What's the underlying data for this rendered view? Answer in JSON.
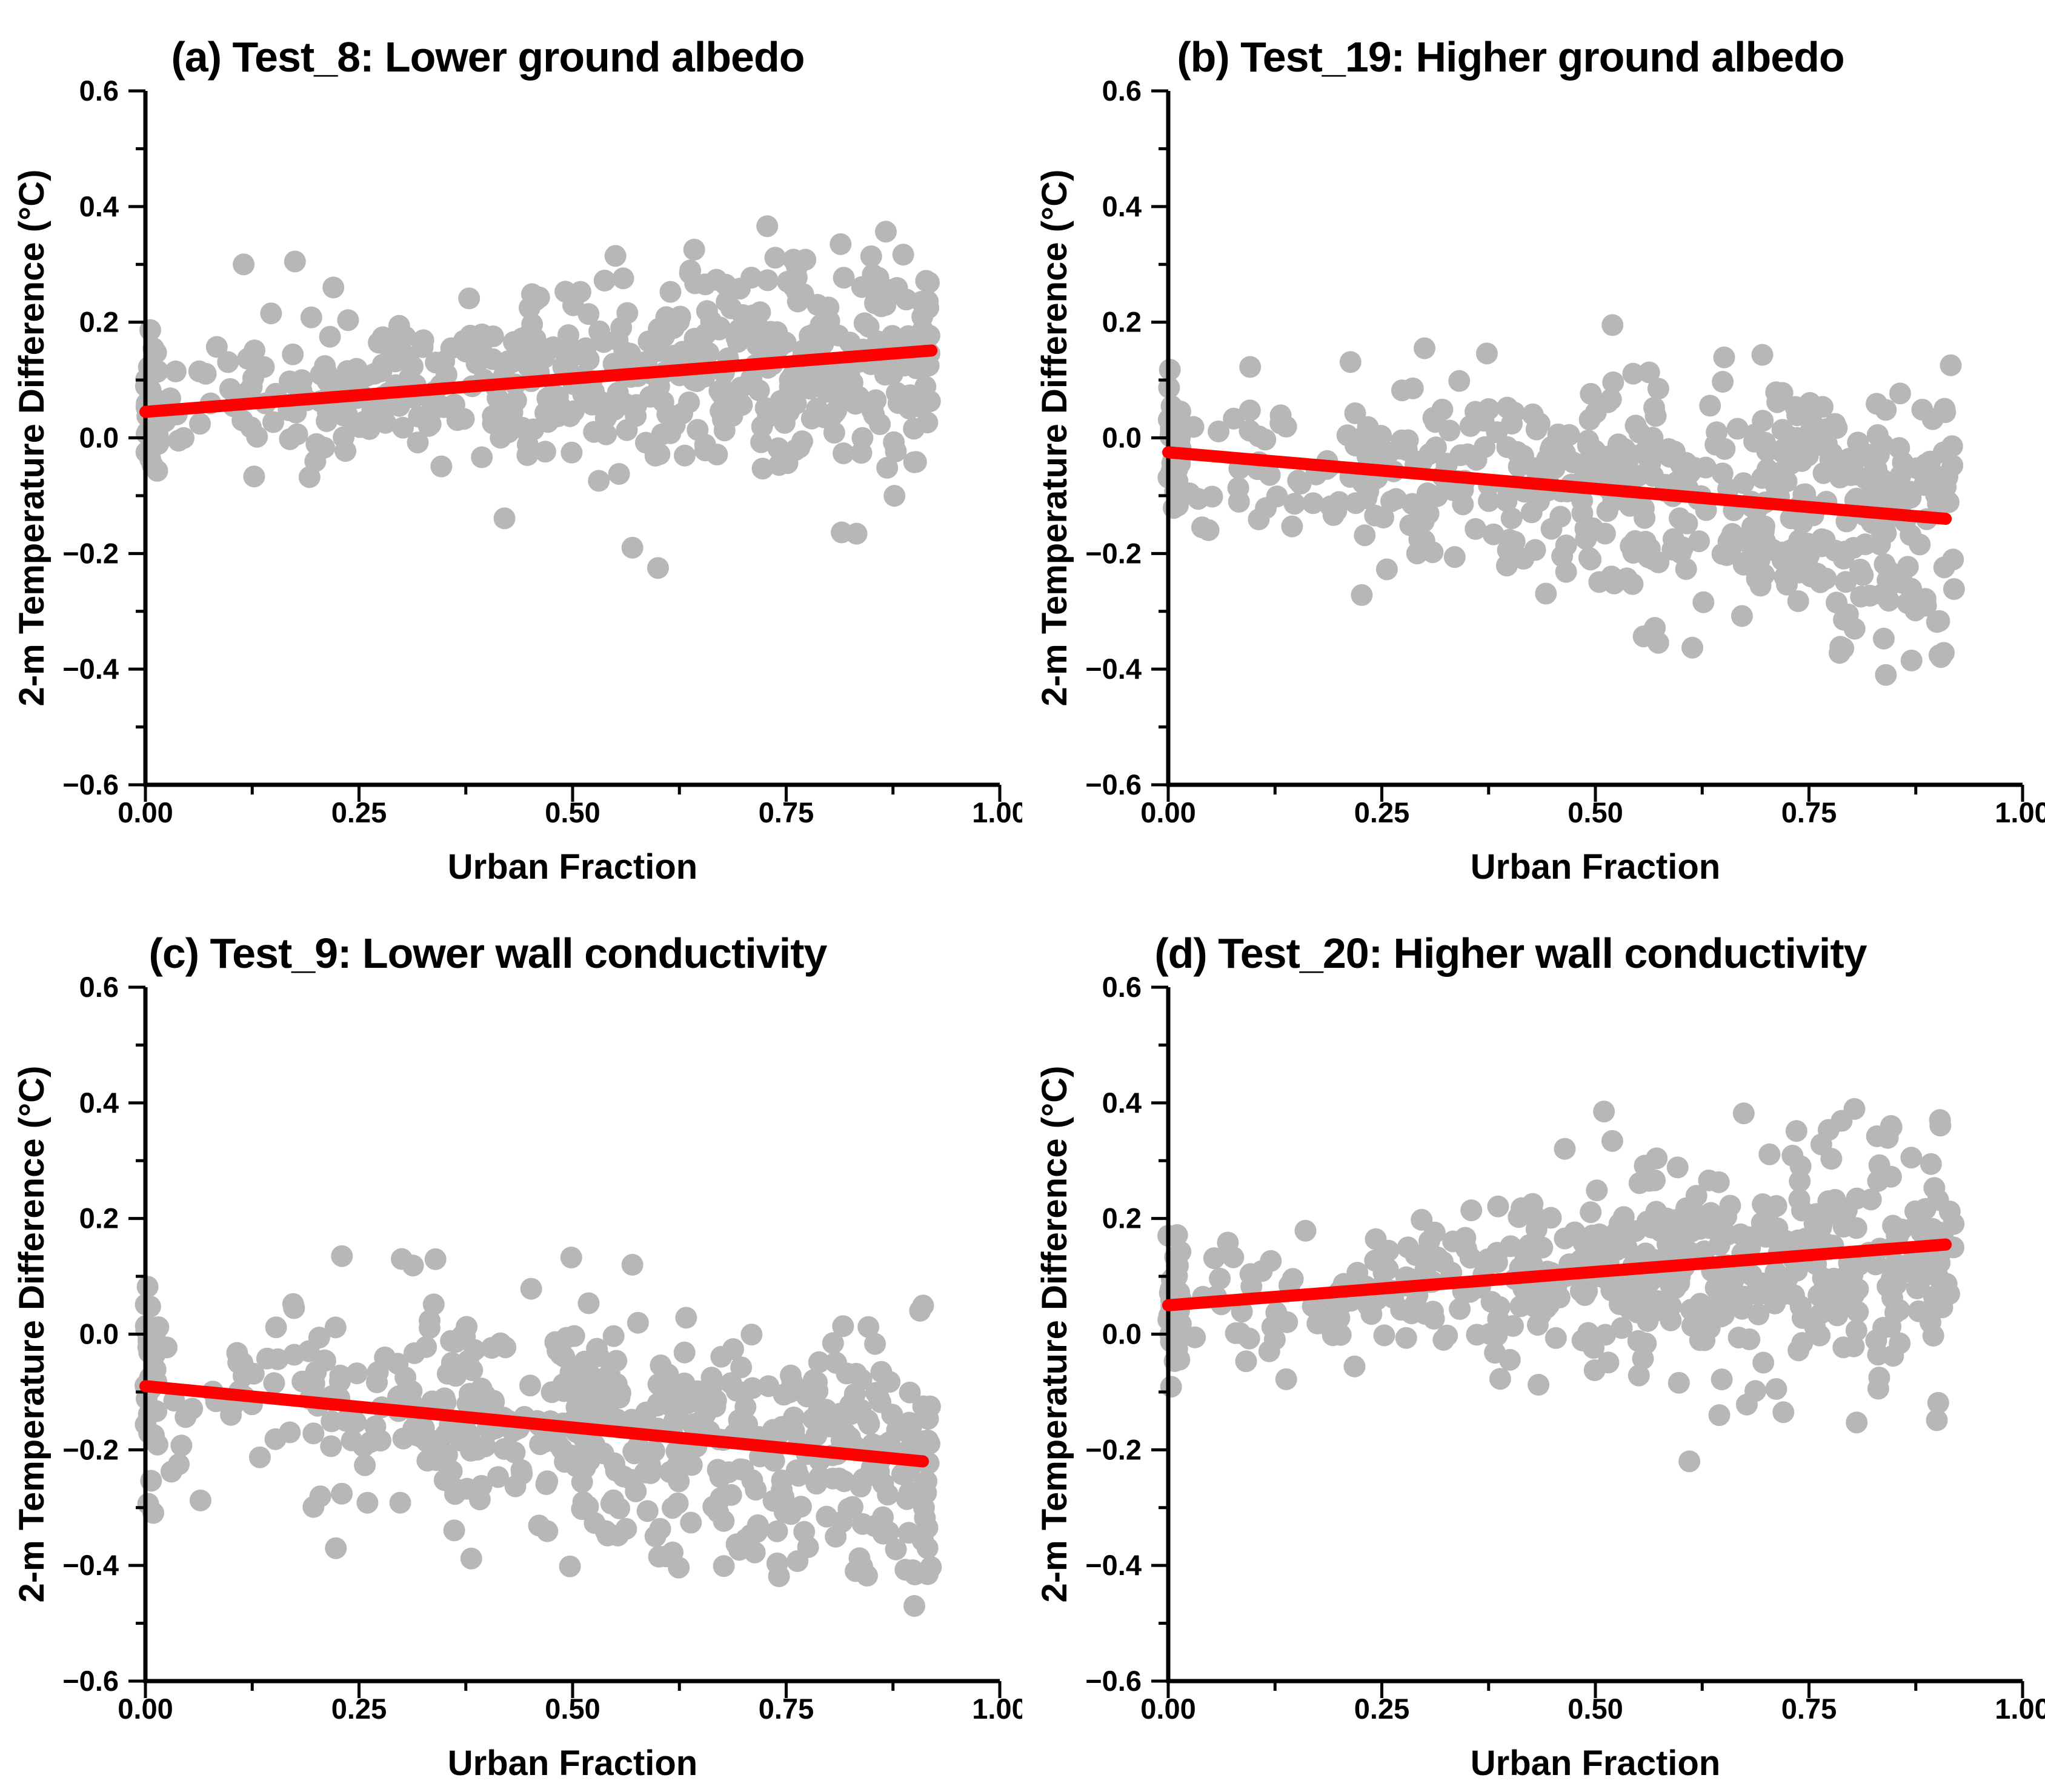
{
  "figure": {
    "x_axis_label": "Urban Fraction",
    "y_axis_label": "2-m Temperature Difference (°C)",
    "colors": {
      "point": "#b7b7b7",
      "trend": "#fe0000",
      "axis": "#000000",
      "background": "#ffffff",
      "text": "#000000"
    }
  },
  "chart_data": [
    {
      "type": "scatter",
      "panel": "a",
      "title": "(a) Test_8: Lower ground albedo",
      "xlabel": "Urban Fraction",
      "ylabel": "2-m Temperature Difference (°C)",
      "xlim": [
        0,
        1
      ],
      "ylim": [
        -0.6,
        0.6
      ],
      "x_ticks": [
        0,
        0.25,
        0.5,
        0.75,
        1
      ],
      "x_tick_labels": [
        "0.00",
        "0.25",
        "0.50",
        "0.75",
        "1.00"
      ],
      "y_ticks": [
        -0.6,
        -0.4,
        -0.2,
        0,
        0.2,
        0.4,
        0.6
      ],
      "y_tick_labels": [
        "−0.6",
        "−0.4",
        "−0.2",
        "0.0",
        "0.2",
        "0.4",
        "0.6"
      ],
      "x_minor_step": 0.125,
      "y_minor_step": 0.1,
      "grid": false,
      "legend": false,
      "trend": {
        "x0": 0,
        "y0": 0.045,
        "x1": 0.92,
        "y1": 0.151
      },
      "scatter": {
        "n": 540,
        "seed": 81,
        "x_max": 0.92,
        "x_exp": 0.62,
        "x0_cluster_frac": 0.07,
        "sd0": 0.055,
        "sd1": 0.115,
        "y_min": -0.24,
        "y_max": 0.375
      },
      "extra_points": [
        [
          0.6,
          -0.225
        ],
        [
          0.57,
          -0.19
        ],
        [
          0.115,
          0.3
        ],
        [
          0.175,
          0.305
        ],
        [
          0.22,
          0.26
        ]
      ]
    },
    {
      "type": "scatter",
      "panel": "b",
      "title": "(b) Test_19: Higher ground albedo",
      "xlabel": "Urban Fraction",
      "ylabel": "2-m Temperature Difference (°C)",
      "xlim": [
        0,
        1
      ],
      "ylim": [
        -0.6,
        0.6
      ],
      "x_ticks": [
        0,
        0.25,
        0.5,
        0.75,
        1
      ],
      "x_tick_labels": [
        "0.00",
        "0.25",
        "0.50",
        "0.75",
        "1.00"
      ],
      "y_ticks": [
        -0.6,
        -0.4,
        -0.2,
        0,
        0.2,
        0.4,
        0.6
      ],
      "y_tick_labels": [
        "−0.6",
        "−0.4",
        "−0.2",
        "0.0",
        "0.2",
        "0.4",
        "0.6"
      ],
      "x_minor_step": 0.125,
      "y_minor_step": 0.1,
      "grid": false,
      "legend": false,
      "trend": {
        "x0": 0,
        "y0": -0.025,
        "x1": 0.91,
        "y1": -0.14
      },
      "scatter": {
        "n": 540,
        "seed": 191,
        "x_max": 0.92,
        "x_exp": 0.62,
        "x0_cluster_frac": 0.07,
        "sd0": 0.07,
        "sd1": 0.125,
        "y_min": -0.38,
        "y_max": 0.205
      },
      "extra_points": [
        [
          0.84,
          -0.41
        ],
        [
          0.87,
          -0.385
        ],
        [
          0.52,
          0.195
        ],
        [
          0.3,
          0.155
        ]
      ]
    },
    {
      "type": "scatter",
      "panel": "c",
      "title": "(c) Test_9: Lower wall conductivity",
      "xlabel": "Urban Fraction",
      "ylabel": "2-m Temperature Difference (°C)",
      "xlim": [
        0,
        1
      ],
      "ylim": [
        -0.6,
        0.6
      ],
      "x_ticks": [
        0,
        0.25,
        0.5,
        0.75,
        1
      ],
      "x_tick_labels": [
        "0.00",
        "0.25",
        "0.50",
        "0.75",
        "1.00"
      ],
      "y_ticks": [
        -0.6,
        -0.4,
        -0.2,
        0,
        0.2,
        0.4,
        0.6
      ],
      "y_tick_labels": [
        "−0.6",
        "−0.4",
        "−0.2",
        "0.0",
        "0.2",
        "0.4",
        "0.6"
      ],
      "x_minor_step": 0.125,
      "y_minor_step": 0.1,
      "grid": false,
      "legend": false,
      "trend": {
        "x0": 0,
        "y0": -0.09,
        "x1": 0.91,
        "y1": -0.22
      },
      "scatter": {
        "n": 540,
        "seed": 91,
        "x_max": 0.92,
        "x_exp": 0.62,
        "x0_cluster_frac": 0.07,
        "sd0": 0.075,
        "sd1": 0.12,
        "y_min": -0.42,
        "y_max": 0.135
      },
      "extra_points": [
        [
          0.9,
          -0.47
        ],
        [
          0.23,
          0.135
        ],
        [
          0.3,
          0.13
        ],
        [
          0.57,
          0.12
        ]
      ]
    },
    {
      "type": "scatter",
      "panel": "d",
      "title": "(d) Test_20: Higher wall conductivity",
      "xlabel": "Urban Fraction",
      "ylabel": "2-m Temperature Difference (°C)",
      "xlim": [
        0,
        1
      ],
      "ylim": [
        -0.6,
        0.6
      ],
      "x_ticks": [
        0,
        0.25,
        0.5,
        0.75,
        1
      ],
      "x_tick_labels": [
        "0.00",
        "0.25",
        "0.50",
        "0.75",
        "1.00"
      ],
      "y_ticks": [
        -0.6,
        -0.4,
        -0.2,
        0,
        0.2,
        0.4,
        0.6
      ],
      "y_tick_labels": [
        "−0.6",
        "−0.4",
        "−0.2",
        "0.0",
        "0.2",
        "0.4",
        "0.6"
      ],
      "x_minor_step": 0.125,
      "y_minor_step": 0.1,
      "grid": false,
      "legend": false,
      "trend": {
        "x0": 0,
        "y0": 0.05,
        "x1": 0.91,
        "y1": 0.155
      },
      "scatter": {
        "n": 540,
        "seed": 201,
        "x_max": 0.92,
        "x_exp": 0.62,
        "x0_cluster_frac": 0.07,
        "sd0": 0.055,
        "sd1": 0.11,
        "y_min": -0.155,
        "y_max": 0.39
      },
      "extra_points": [
        [
          0.61,
          -0.22
        ],
        [
          0.51,
          0.385
        ],
        [
          0.72,
          -0.135
        ],
        [
          0.645,
          -0.14
        ]
      ]
    }
  ]
}
